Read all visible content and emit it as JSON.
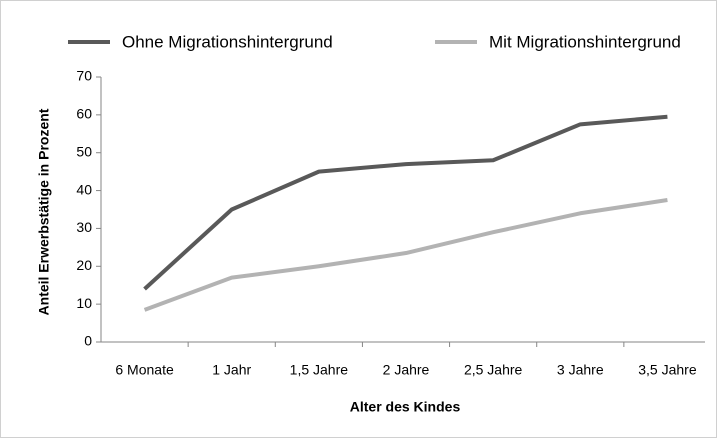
{
  "chart_data": {
    "type": "line",
    "categories": [
      "6 Monate",
      "1 Jahr",
      "1,5 Jahre",
      "2 Jahre",
      "2,5 Jahre",
      "3 Jahre",
      "3,5 Jahre"
    ],
    "series": [
      {
        "name": "Ohne Migrationshintergrund",
        "color": "#595959",
        "values": [
          14,
          35,
          45,
          47,
          48,
          57.5,
          59.5
        ]
      },
      {
        "name": "Mit Migrationshintergrund",
        "color": "#b3b3b3",
        "values": [
          8.5,
          17,
          20,
          23.5,
          29,
          34,
          37.5
        ]
      }
    ],
    "ylim": [
      0,
      70
    ],
    "yticks": [
      0,
      10,
      20,
      30,
      40,
      50,
      60,
      70
    ],
    "y_label": "Anteil Erwerbstätige in Prozent",
    "x_label": "Alter des Kindes",
    "legend": "top"
  }
}
